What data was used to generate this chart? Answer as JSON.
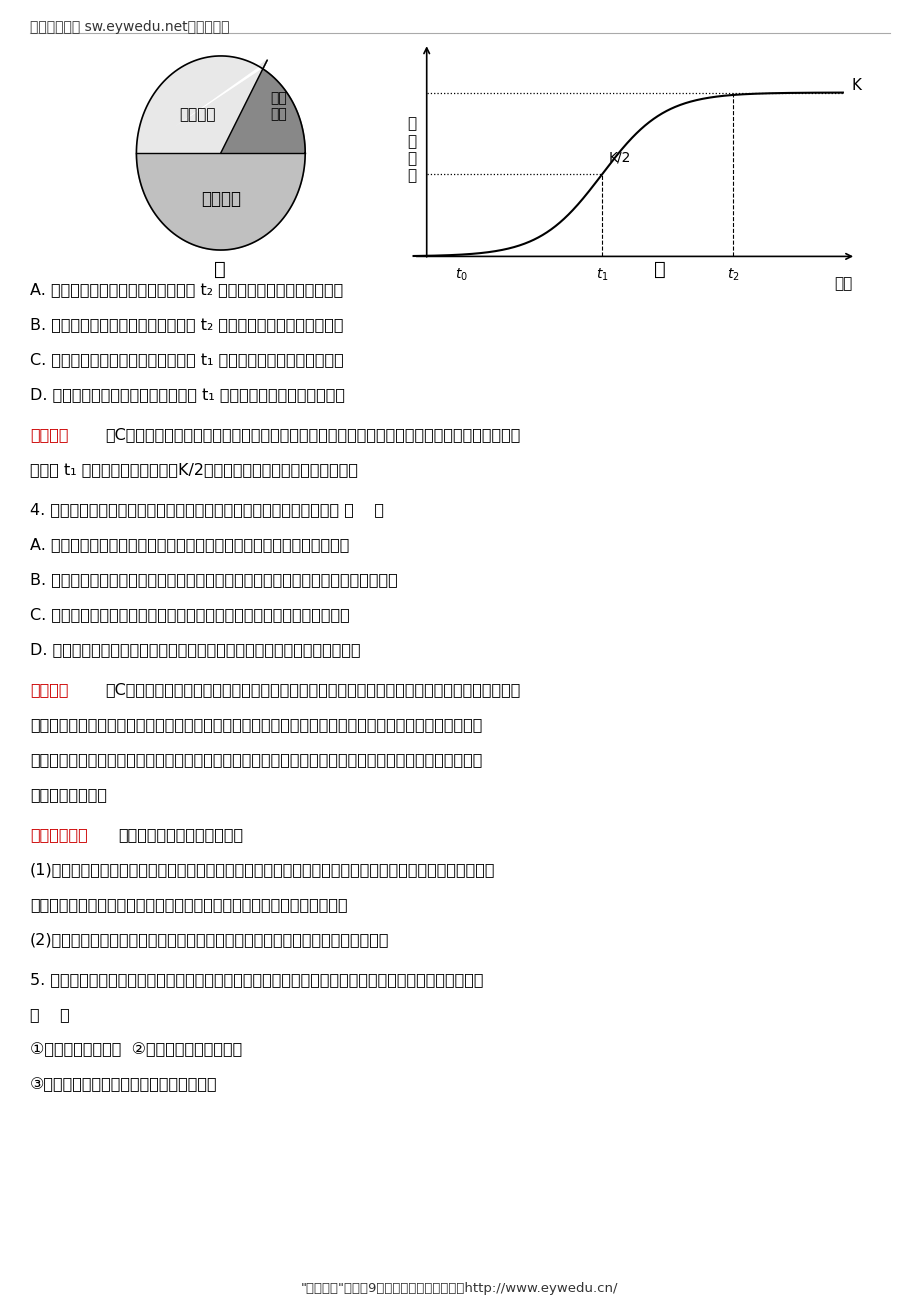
{
  "header_text": "生物备课大师 sw.eywedu.net》全免费《",
  "header_text2": "生物备课大师 sw.eywedu.net【全免费】",
  "footer_text": "\"备课大师\"全科【9门】：免注册，不收费！http://www.eywedu.cn/",
  "fig_label_jia": "甲",
  "fig_label_yi": "乙",
  "curve_K_label": "K",
  "curve_K2_label": "K/2",
  "q3_A": "A. 甲图的年龄组成是增长型，在乙图 t₂ 时期很可能属于这种年龄组成",
  "q3_B": "B. 甲图的年龄组成是稳定型，在乙图 t₂ 时期很可能属于这种年龄组成",
  "q3_C": "C. 甲图的年龄组成是增长型，在乙图 t₁ 时期很可能属于这种年龄组成",
  "q3_D": "D. 甲图的年龄组成是稳定型，在乙图 t₁ 时期很可能属于这种年龄组成",
  "jixi_3_prefix": "【解析】",
  "jixi_3_text": "选C。甲图中幼年个体所占比例明显大于其他两种年龄阶段的个体比例，所以年龄组成为增长型；",
  "jixi_3_text2": "乙图中 t₁ 时期对应的种群数量为K/2，此时增长速率最大，也为增长型。",
  "q4_text": "4. 下列调查活动或实验中，所得到数值与实际数值相比，肯定偏小的是 （    ）",
  "q4_A": "A. 标志重捕法调查池塘中鲤鱼的种群密度时，部分鲤鱼身上的标记物脱落",
  "q4_B": "B. 探究培养液中酵母菌种群数量的变化时，从试管中吸出培养液计数前没有振荡试管",
  "q4_C": "C. 调查土壤中小动物类群的丰富度时，用诱虫器采集小动物没有打开电灯",
  "q4_D": "D. 标志重捕法调查草原田鼠种群密度时，田鼠在被捕捉过一次后更难被捕捉",
  "jixi_4_prefix": "【解析】",
  "jixi_4_text": "选C。标记物的脱落和捕捉一次后更难捕捉都会使在第二次重捕时，有标记物的个体减少，从而使",
  "jixi_4_text2": "调查值偏高；探究培养液中酵母菌种群数量的变化时，没有振荡试管，酵母菌分布不均匀，可能取到密度大",
  "jixi_4_text3": "的部分，也可能取到密度小的部分；调查土壤中小动物类群的丰富度时，诱虫器的电灯没有打开会使收集到",
  "jixi_4_text4": "的动物数量减少。",
  "fangfa_prefix": "【方法规律】",
  "fangfa_text": "种群密度调查数据的偏差分析",
  "fangfa_1": "(1)偏高：一般情况下，导致第二次捕获中标记个体数比实际数值小的因素，都会导致最终的调查数据偏高，",
  "fangfa_1b": "如被标记的个体不容易再次捕获、标记物脱落等，都会导致调查数据偏高。",
  "fangfa_2": "(2)偏低：若标记明显，被标记的个体第二次更容易被捕获，会导致调查数据偏低。",
  "q5_text": "5. 下图是某一动物种群迁入一个适宜环境后的增长曲线图，图中曲线的标号与下列各点对应正确的一项是",
  "q5_text2": "（    ）",
  "q5_items": "①种群数量最大的点  ②种群增长速率最快的点",
  "q5_items2": "③该种群迁入后环境阻力开始明显增大的点",
  "background_color": "#ffffff",
  "red_color": "#cc0000",
  "pie_adult_color": "#e8e8e8",
  "pie_old_color": "#888888",
  "pie_young_color": "#c0c0c0"
}
